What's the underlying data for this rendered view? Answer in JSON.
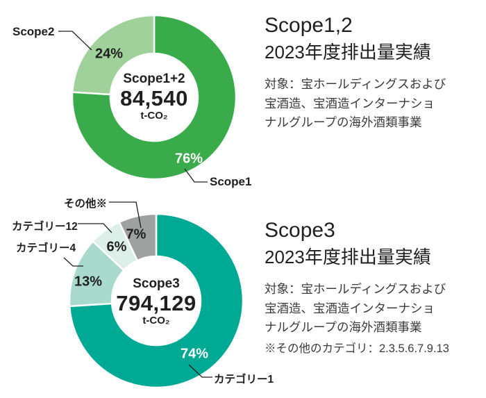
{
  "chart_data": [
    {
      "type": "donut",
      "title": "Scope1,2",
      "subtitle": "2023年度排出量実績",
      "description": [
        "対象：宝ホールディングスおよび",
        "宝酒造、宝酒造インターナショ",
        "ナルグループの海外酒類事業"
      ],
      "center": {
        "title": "Scope1+2",
        "value": "84,540",
        "unit": "t-CO₂"
      },
      "start_angle_deg": 0,
      "direction": "clockwise",
      "segments": [
        {
          "label": "Scope1",
          "value": 76,
          "pct_text": "76%",
          "color": "#3aab4b",
          "pct_text_color": "#ffffff"
        },
        {
          "label": "Scope2",
          "value": 24,
          "pct_text": "24%",
          "color": "#a0d19b",
          "pct_text_color": "#1f1f1f"
        }
      ]
    },
    {
      "type": "donut",
      "title": "Scope3",
      "subtitle": "2023年度排出量実績",
      "description": [
        "対象：宝ホールディングスおよび",
        "宝酒造、宝酒造インターナショ",
        "ナルグループの海外酒類事業"
      ],
      "footnote": "※その他のカテゴリ：2.3.5.6.7.9.13",
      "center": {
        "title": "Scope3",
        "value": "794,129",
        "unit": "t-CO₂"
      },
      "start_angle_deg": 0,
      "direction": "clockwise",
      "segments": [
        {
          "label": "カテゴリー1",
          "value": 74,
          "pct_text": "74%",
          "color": "#00a994",
          "pct_text_color": "#ffffff"
        },
        {
          "label": "カテゴリー4",
          "value": 13,
          "pct_text": "13%",
          "color": "#aadacd",
          "pct_text_color": "#1f1f1f"
        },
        {
          "label": "カテゴリー12",
          "value": 6,
          "pct_text": "6%",
          "color": "#dcefe9",
          "pct_text_color": "#1f1f1f"
        },
        {
          "label": "その他※",
          "value": 7,
          "pct_text": "7%",
          "color": "#9fa0a0",
          "pct_text_color": "#1f1f1f"
        }
      ]
    }
  ]
}
